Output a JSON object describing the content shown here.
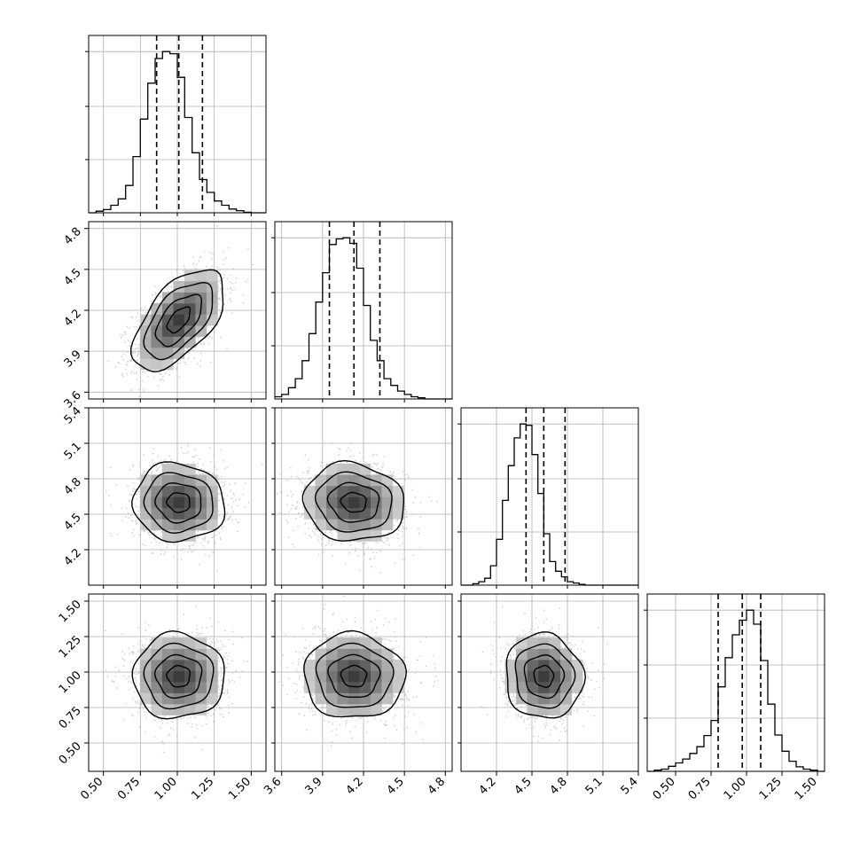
{
  "chart_data": {
    "type": "corner",
    "parameters": [
      {
        "range": [
          0.4,
          1.6
        ],
        "ticks": [
          0.5,
          0.75,
          1.0,
          1.25,
          1.5
        ],
        "tick_labels": [
          "0.50",
          "0.75",
          "1.00",
          "1.25",
          "1.50"
        ],
        "hist": {
          "bin_edges": [
            0.4,
            0.45,
            0.5,
            0.55,
            0.6,
            0.65,
            0.7,
            0.75,
            0.8,
            0.85,
            0.9,
            0.95,
            1.0,
            1.05,
            1.1,
            1.15,
            1.2,
            1.25,
            1.3,
            1.35,
            1.4,
            1.45,
            1.5,
            1.55,
            1.6
          ],
          "counts": [
            0,
            3,
            6,
            14,
            26,
            51,
            105,
            175,
            242,
            288,
            301,
            297,
            253,
            178,
            112,
            62,
            38,
            22,
            14,
            7,
            4,
            1,
            0,
            0
          ]
        },
        "quantiles": [
          0.86,
          1.01,
          1.17
        ]
      },
      {
        "range": [
          3.55,
          4.85
        ],
        "ticks": [
          3.6,
          3.9,
          4.2,
          4.5,
          4.8
        ],
        "tick_labels": [
          "3.6",
          "3.9",
          "4.2",
          "4.5",
          "4.8"
        ],
        "hist": {
          "bin_edges": [
            3.55,
            3.6,
            3.65,
            3.7,
            3.75,
            3.8,
            3.85,
            3.9,
            3.95,
            4.0,
            4.05,
            4.1,
            4.15,
            4.2,
            4.25,
            4.3,
            4.35,
            4.4,
            4.45,
            4.5,
            4.55,
            4.6,
            4.65,
            4.7,
            4.75,
            4.8,
            4.85
          ],
          "counts": [
            2,
            4,
            10,
            18,
            34,
            58,
            86,
            112,
            137,
            142,
            143,
            138,
            116,
            83,
            52,
            34,
            18,
            12,
            7,
            4,
            2,
            1,
            0,
            0,
            0,
            0
          ]
        },
        "quantiles": [
          3.95,
          4.13,
          4.32
        ]
      },
      {
        "range": [
          3.9,
          5.4
        ],
        "ticks": [
          4.2,
          4.5,
          4.8,
          5.1,
          5.4
        ],
        "tick_labels": [
          "4.2",
          "4.5",
          "4.8",
          "5.1",
          "5.4"
        ],
        "hist": {
          "bin_edges": [
            3.9,
            3.95,
            4.0,
            4.05,
            4.1,
            4.15,
            4.2,
            4.25,
            4.3,
            4.35,
            4.4,
            4.45,
            4.5,
            4.55,
            4.6,
            4.65,
            4.7,
            4.75,
            4.8,
            4.85,
            4.9,
            4.95,
            5.0,
            5.05,
            5.1,
            5.15,
            5.2,
            5.25,
            5.3,
            5.35,
            5.4
          ],
          "counts": [
            0,
            0,
            2,
            5,
            10,
            28,
            66,
            122,
            172,
            212,
            232,
            230,
            188,
            132,
            74,
            34,
            20,
            12,
            5,
            3,
            1,
            0,
            0,
            0,
            0,
            0,
            0,
            0,
            0,
            0
          ]
        },
        "quantiles": [
          4.45,
          4.6,
          4.78
        ]
      },
      {
        "range": [
          0.3,
          1.55
        ],
        "ticks": [
          0.5,
          0.75,
          1.0,
          1.25,
          1.5
        ],
        "tick_labels": [
          "0.50",
          "0.75",
          "1.00",
          "1.25",
          "1.50"
        ],
        "hist": {
          "bin_edges": [
            0.3,
            0.35,
            0.4,
            0.45,
            0.5,
            0.55,
            0.6,
            0.65,
            0.7,
            0.75,
            0.8,
            0.85,
            0.9,
            0.95,
            1.0,
            1.05,
            1.1,
            1.15,
            1.2,
            1.25,
            1.3,
            1.35,
            1.4,
            1.45,
            1.5,
            1.55
          ],
          "counts": [
            0,
            2,
            4,
            9,
            15,
            22,
            32,
            44,
            64,
            91,
            151,
            203,
            244,
            270,
            288,
            263,
            198,
            120,
            65,
            36,
            18,
            8,
            4,
            2,
            0
          ]
        },
        "quantiles": [
          0.8,
          0.97,
          1.1
        ]
      }
    ],
    "correlations": [
      [
        1.0,
        0.58,
        -0.05,
        0.0
      ],
      [
        0.58,
        1.0,
        -0.08,
        -0.03
      ],
      [
        -0.05,
        -0.08,
        1.0,
        -0.05
      ],
      [
        0.0,
        -0.03,
        -0.05,
        1.0
      ]
    ],
    "grid": true,
    "colors": {
      "line": "#000000",
      "grid": "#b0b0b0",
      "scatter": "#b5b5b5"
    }
  }
}
